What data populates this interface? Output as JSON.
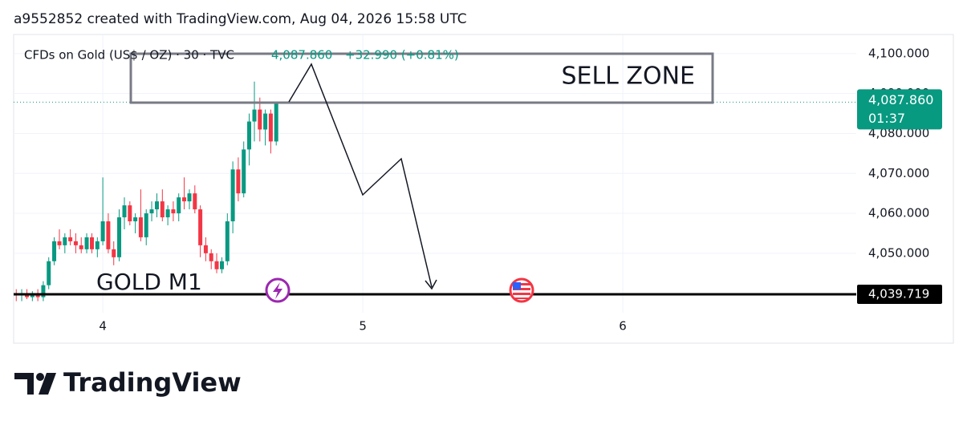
{
  "header": "a9552852 created with TradingView.com, Aug 04, 2026 15:58 UTC",
  "logo": "TradingView",
  "chart_data": {
    "type": "candlestick",
    "symbol": "CFDs on Gold (US$ / OZ) · 30 · TVC",
    "last_price": {
      "value": 4087.86,
      "label": "4,087.860"
    },
    "change": "+32.990 (+0.81%)",
    "countdown": "01:37",
    "hline": {
      "value": 4039.719,
      "label": "4,039.719"
    },
    "annotations": [
      "SELL ZONE",
      "GOLD M1"
    ],
    "up_color": "#089981",
    "down_color": "#f23645",
    "xlim": [
      3.657,
      6.898
    ],
    "xticks": [
      4,
      5,
      6
    ],
    "ylim": [
      4035.1,
      4104.6
    ],
    "yticks": [
      {
        "value": 4050,
        "label": "4,050.000"
      },
      {
        "value": 4060,
        "label": "4,060.000"
      },
      {
        "value": 4070,
        "label": "4,070.000"
      },
      {
        "value": 4080,
        "label": "4,080.000"
      },
      {
        "value": 4090,
        "label": "4,090.000"
      },
      {
        "value": 4100,
        "label": "4,100.000"
      }
    ],
    "grid": true,
    "x": [
      3.667,
      3.688,
      3.708,
      3.729,
      3.75,
      3.771,
      3.792,
      3.813,
      3.833,
      3.854,
      3.875,
      3.896,
      3.917,
      3.938,
      3.958,
      3.979,
      4.0,
      4.021,
      4.042,
      4.063,
      4.083,
      4.104,
      4.125,
      4.146,
      4.167,
      4.188,
      4.208,
      4.229,
      4.25,
      4.271,
      4.292,
      4.313,
      4.333,
      4.354,
      4.375,
      4.396,
      4.417,
      4.438,
      4.458,
      4.479,
      4.5,
      4.521,
      4.542,
      4.563,
      4.583,
      4.604,
      4.625,
      4.646,
      4.667
    ],
    "open": [
      4040,
      4039.5,
      4040,
      4039,
      4040,
      4039,
      4042,
      4048,
      4053,
      4052,
      4054,
      4053,
      4052,
      4051,
      4054,
      4051,
      4053,
      4058,
      4051,
      4049,
      4059,
      4062,
      4058,
      4059,
      4054,
      4060,
      4061,
      4063,
      4059,
      4061,
      4060,
      4064,
      4063,
      4065,
      4061,
      4052,
      4050,
      4048,
      4046,
      4048,
      4058,
      4071,
      4065,
      4076,
      4083,
      4086,
      4081,
      4085,
      4078
    ],
    "high": [
      4041,
      4041,
      4041,
      4040.5,
      4041,
      4043,
      4049,
      4054,
      4056,
      4055,
      4056,
      4055,
      4054,
      4055,
      4055,
      4054,
      4069,
      4060,
      4053,
      4061,
      4064,
      4063,
      4060,
      4066,
      4061,
      4063,
      4065,
      4066,
      4062,
      4063,
      4065,
      4069,
      4066,
      4067,
      4062,
      4054,
      4051,
      4050,
      4049,
      4060,
      4073,
      4074,
      4078,
      4085,
      4093,
      4089,
      4086,
      4086,
      4088
    ],
    "low": [
      4038,
      4038,
      4038.5,
      4038,
      4038,
      4038,
      4041,
      4047,
      4051,
      4050,
      4052,
      4050,
      4050,
      4050,
      4050,
      4049,
      4052,
      4050,
      4047,
      4048,
      4056,
      4057,
      4055,
      4053,
      4052,
      4058,
      4059,
      4058,
      4057,
      4058,
      4058,
      4061,
      4061,
      4060,
      4049,
      4048,
      4046,
      4045,
      4045,
      4047,
      4055,
      4063,
      4064,
      4072,
      4078,
      4078,
      4077,
      4075,
      4077
    ],
    "close": [
      4039.5,
      4040,
      4039,
      4040,
      4039,
      4042,
      4048,
      4053,
      4052,
      4054,
      4053,
      4052,
      4051,
      4054,
      4051,
      4053,
      4058,
      4051,
      4049,
      4059,
      4062,
      4058,
      4059,
      4054,
      4060,
      4061,
      4063,
      4059,
      4061,
      4060,
      4064,
      4063,
      4065,
      4061,
      4052,
      4050,
      4048,
      4046,
      4048,
      4058,
      4071,
      4065,
      4076,
      4083,
      4086,
      4081,
      4085,
      4078,
      4087.86
    ]
  }
}
